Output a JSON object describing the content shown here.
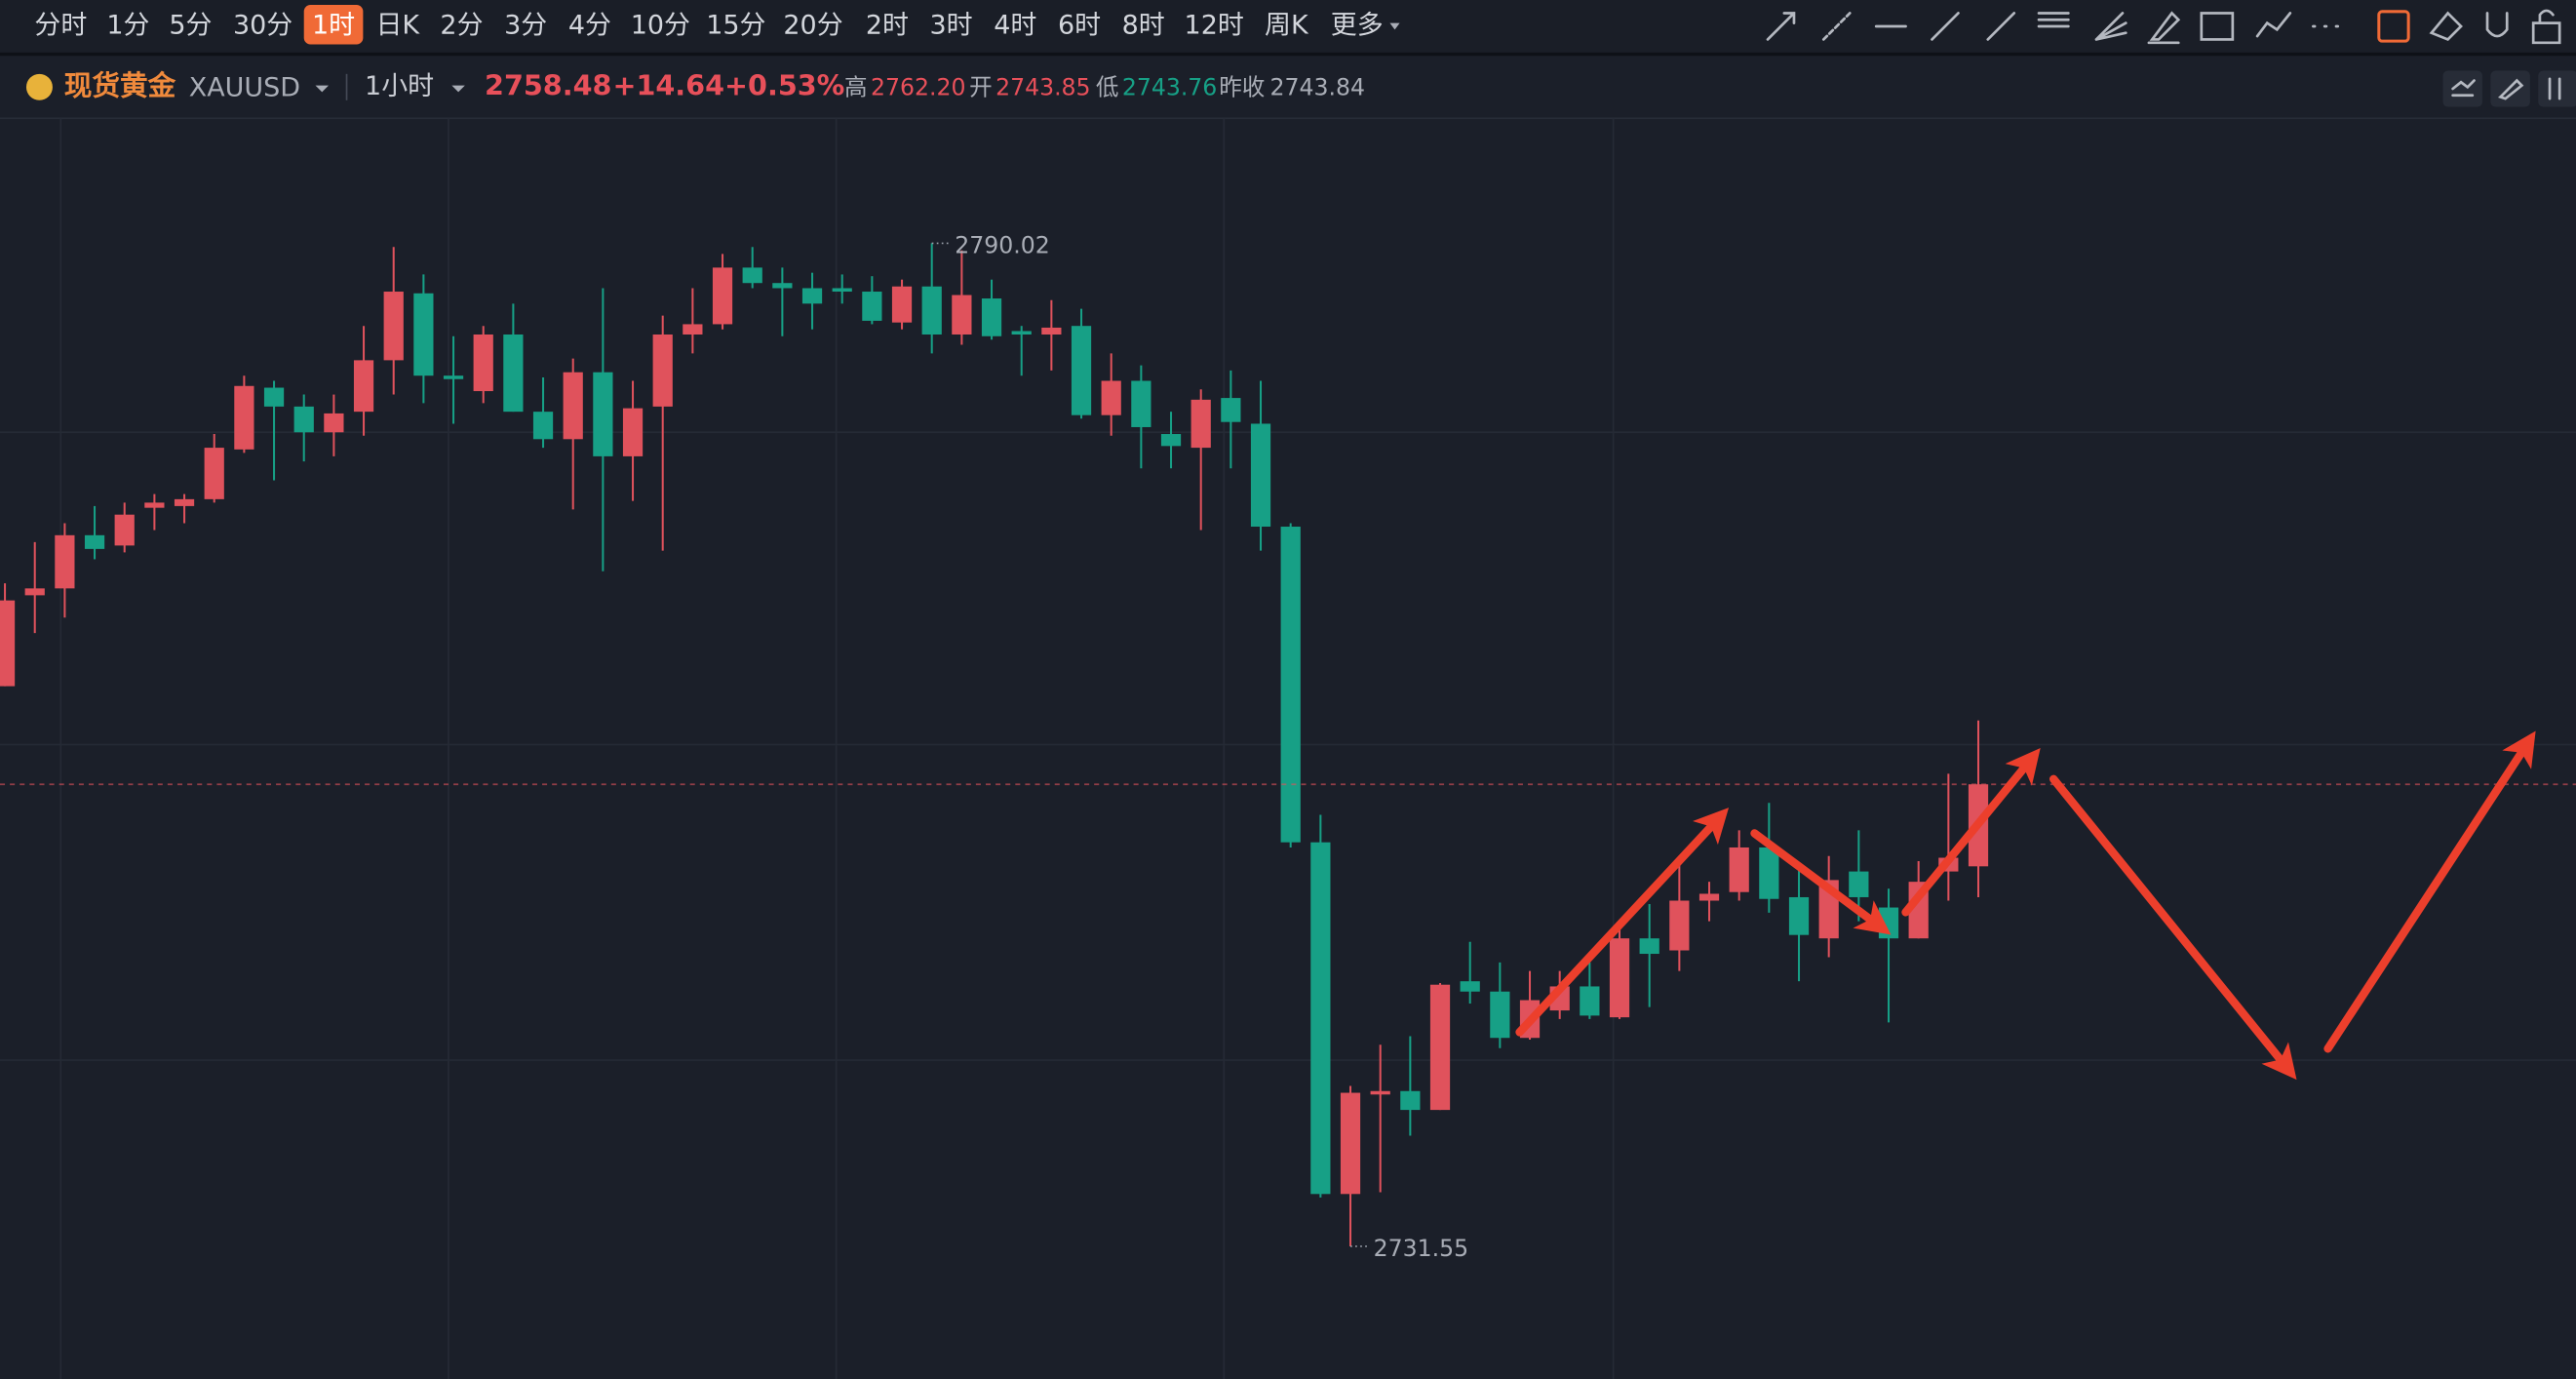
{
  "toolbar": {
    "periods": [
      "分时",
      "1分",
      "5分",
      "30分",
      "1时",
      "日K",
      "2分",
      "3分",
      "4分",
      "10分",
      "15分",
      "20分",
      "2时",
      "3时",
      "4时",
      "6时",
      "8时",
      "12时",
      "周K",
      "更多"
    ],
    "active_period": 4
  },
  "quote": {
    "name": "现货黄金",
    "symbol": "XAUUSD",
    "interval": "1小时",
    "last": "2758.48",
    "change": "+14.64",
    "change_pct": "+0.53%",
    "high_label": "高",
    "high": "2762.20",
    "open_label": "开",
    "open": "2743.85",
    "low_label": "低",
    "low": "2743.76",
    "prev_close_label": "昨收",
    "prev_close": "2743.84"
  },
  "chart_data": {
    "type": "candlestick",
    "categories": [
      null,
      null,
      null,
      null,
      null,
      null,
      null,
      null,
      null,
      null,
      null,
      null,
      null,
      null,
      null,
      null,
      null,
      null,
      null,
      null,
      null,
      null,
      null,
      null,
      null,
      null,
      null,
      null,
      null,
      null,
      null,
      null,
      null,
      null,
      null,
      null,
      null,
      null,
      null,
      null,
      null,
      null,
      null,
      null,
      null,
      null,
      null,
      null,
      null,
      null,
      null,
      null,
      null,
      null,
      null,
      null,
      null,
      null,
      null,
      null,
      null,
      null,
      null,
      null,
      null,
      null,
      null
    ],
    "open": [
      2764.2,
      2769.5,
      2769.9,
      2773.0,
      2772.4,
      2774.6,
      2774.7,
      2775.1,
      2778.0,
      2781.6,
      2780.5,
      2779.0,
      2780.2,
      2783.2,
      2787.1,
      2782.3,
      2781.4,
      2784.7,
      2780.2,
      2778.6,
      2782.5,
      2777.6,
      2780.5,
      2784.7,
      2785.3,
      2788.6,
      2787.7,
      2787.4,
      2787.4,
      2787.2,
      2785.4,
      2787.5,
      2784.7,
      2786.8,
      2784.9,
      2784.7,
      2785.2,
      2780.0,
      2782.0,
      2778.9,
      2778.1,
      2781.0,
      2779.5,
      2773.5,
      2755.1,
      2734.6,
      2740.4,
      2740.6,
      2739.5,
      2747.0,
      2746.4,
      2743.7,
      2745.3,
      2746.7,
      2744.9,
      2749.5,
      2748.8,
      2751.7,
      2752.2,
      2754.8,
      2751.9,
      2749.5,
      2753.4,
      2751.3,
      2749.5,
      2753.4,
      2753.7
    ],
    "high": [
      2770.2,
      2772.6,
      2773.7,
      2774.7,
      2774.9,
      2775.4,
      2775.4,
      2778.9,
      2782.3,
      2782.0,
      2781.2,
      2781.2,
      2785.2,
      2789.8,
      2788.2,
      2784.6,
      2785.2,
      2786.5,
      2782.2,
      2783.3,
      2787.4,
      2782.0,
      2785.8,
      2787.4,
      2789.4,
      2789.8,
      2788.6,
      2788.3,
      2788.2,
      2788.1,
      2787.9,
      2790.02,
      2789.6,
      2787.9,
      2785.2,
      2786.7,
      2786.2,
      2783.6,
      2782.9,
      2780.2,
      2781.5,
      2782.6,
      2782.0,
      2773.7,
      2756.7,
      2740.9,
      2743.3,
      2743.8,
      2746.9,
      2749.3,
      2748.1,
      2747.6,
      2747.6,
      2748.1,
      2750.5,
      2751.5,
      2754.3,
      2752.8,
      2755.8,
      2757.4,
      2753.6,
      2754.3,
      2755.8,
      2752.4,
      2754.0,
      2759.1,
      2762.2
    ],
    "low": [
      2764.2,
      2767.3,
      2768.2,
      2771.6,
      2772.0,
      2773.3,
      2773.7,
      2774.9,
      2777.8,
      2776.2,
      2777.3,
      2777.6,
      2778.8,
      2781.2,
      2780.7,
      2779.5,
      2780.7,
      2780.2,
      2778.1,
      2774.5,
      2770.9,
      2775.0,
      2772.1,
      2783.6,
      2785.0,
      2787.4,
      2784.6,
      2785.0,
      2786.5,
      2785.3,
      2785.0,
      2783.6,
      2784.1,
      2784.4,
      2782.3,
      2782.6,
      2779.8,
      2778.8,
      2776.9,
      2776.9,
      2773.3,
      2776.9,
      2772.1,
      2754.8,
      2734.4,
      2731.55,
      2734.7,
      2738.0,
      2739.5,
      2745.7,
      2743.1,
      2743.6,
      2744.8,
      2744.8,
      2744.8,
      2745.5,
      2747.6,
      2750.5,
      2751.7,
      2751.0,
      2747.0,
      2748.4,
      2750.5,
      2744.6,
      2749.5,
      2751.7,
      2751.9
    ],
    "close": [
      2769.2,
      2769.9,
      2773.0,
      2772.2,
      2774.2,
      2774.9,
      2775.1,
      2778.1,
      2781.7,
      2780.5,
      2779.0,
      2780.1,
      2783.2,
      2787.2,
      2782.3,
      2782.1,
      2784.7,
      2780.2,
      2778.6,
      2782.5,
      2777.6,
      2780.4,
      2784.7,
      2785.3,
      2788.6,
      2787.7,
      2787.4,
      2786.5,
      2787.2,
      2785.5,
      2787.5,
      2784.7,
      2787.0,
      2784.6,
      2784.7,
      2785.1,
      2780.0,
      2782.0,
      2779.3,
      2778.2,
      2780.9,
      2779.6,
      2773.5,
      2755.1,
      2734.6,
      2740.5,
      2740.6,
      2739.5,
      2746.8,
      2746.4,
      2743.7,
      2745.9,
      2746.7,
      2745.0,
      2749.5,
      2748.6,
      2751.7,
      2752.1,
      2754.8,
      2751.8,
      2749.7,
      2752.9,
      2751.9,
      2749.5,
      2752.8,
      2754.2,
      2758.48
    ],
    "ylim": [
      2724.2,
      2797.3
    ],
    "up_color": "#e0525c",
    "down_color": "#17a086"
  }
}
